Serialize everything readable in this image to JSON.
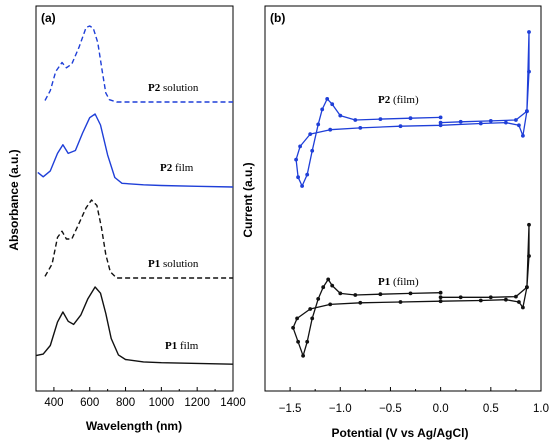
{
  "chart_data": [
    {
      "panel_label": "(a)",
      "type": "line",
      "xlabel": "Wavelength (nm)",
      "ylabel": "Absorbance (a.u.)",
      "xlim": [
        300,
        1400
      ],
      "xticks": [
        400,
        600,
        800,
        1000,
        1200,
        1400
      ],
      "y_ticks_shown": false,
      "series": [
        {
          "name": "P2 solution",
          "color": "#1f3fd8",
          "dash": true,
          "offset": 3,
          "points": [
            [
              350,
              0.02
            ],
            [
              380,
              0.15
            ],
            [
              410,
              0.4
            ],
            [
              445,
              0.52
            ],
            [
              470,
              0.45
            ],
            [
              500,
              0.5
            ],
            [
              540,
              0.72
            ],
            [
              580,
              0.98
            ],
            [
              600,
              1.0
            ],
            [
              620,
              0.97
            ],
            [
              645,
              0.78
            ],
            [
              670,
              0.4
            ],
            [
              690,
              0.12
            ],
            [
              710,
              0.03
            ],
            [
              750,
              0.0
            ],
            [
              800,
              0.0
            ],
            [
              1000,
              0.0
            ],
            [
              1200,
              0.0
            ],
            [
              1400,
              0.0
            ]
          ]
        },
        {
          "name": "P2 film",
          "color": "#1f3fd8",
          "dash": false,
          "offset": 2,
          "points": [
            [
              310,
              0.2
            ],
            [
              340,
              0.14
            ],
            [
              380,
              0.22
            ],
            [
              420,
              0.46
            ],
            [
              450,
              0.58
            ],
            [
              480,
              0.46
            ],
            [
              520,
              0.5
            ],
            [
              560,
              0.74
            ],
            [
              600,
              0.95
            ],
            [
              630,
              1.0
            ],
            [
              660,
              0.85
            ],
            [
              700,
              0.44
            ],
            [
              740,
              0.13
            ],
            [
              780,
              0.05
            ],
            [
              900,
              0.03
            ],
            [
              1000,
              0.02
            ],
            [
              1200,
              0.01
            ],
            [
              1400,
              0.0
            ]
          ]
        },
        {
          "name": "P1 solution",
          "color": "#111111",
          "dash": true,
          "offset": 1,
          "points": [
            [
              350,
              0.02
            ],
            [
              390,
              0.18
            ],
            [
              420,
              0.52
            ],
            [
              445,
              0.6
            ],
            [
              470,
              0.5
            ],
            [
              500,
              0.5
            ],
            [
              540,
              0.7
            ],
            [
              580,
              0.9
            ],
            [
              610,
              1.0
            ],
            [
              640,
              0.93
            ],
            [
              665,
              0.65
            ],
            [
              690,
              0.3
            ],
            [
              715,
              0.08
            ],
            [
              750,
              0.0
            ],
            [
              800,
              0.0
            ],
            [
              1000,
              0.0
            ],
            [
              1200,
              0.0
            ],
            [
              1400,
              0.0
            ]
          ]
        },
        {
          "name": "P1 film",
          "color": "#111111",
          "dash": false,
          "offset": 0,
          "points": [
            [
              300,
              0.12
            ],
            [
              340,
              0.14
            ],
            [
              380,
              0.25
            ],
            [
              420,
              0.55
            ],
            [
              450,
              0.68
            ],
            [
              480,
              0.56
            ],
            [
              510,
              0.52
            ],
            [
              550,
              0.64
            ],
            [
              590,
              0.85
            ],
            [
              630,
              1.0
            ],
            [
              660,
              0.92
            ],
            [
              690,
              0.66
            ],
            [
              720,
              0.34
            ],
            [
              760,
              0.13
            ],
            [
              800,
              0.07
            ],
            [
              900,
              0.04
            ],
            [
              1000,
              0.03
            ],
            [
              1200,
              0.02
            ],
            [
              1400,
              0.01
            ]
          ]
        }
      ],
      "annotations": [
        {
          "bold": "P2",
          "text": " solution"
        },
        {
          "bold": "P2",
          "text": " film"
        },
        {
          "bold": "P1",
          "text": " solution"
        },
        {
          "bold": "P1",
          "text": " film"
        }
      ]
    },
    {
      "panel_label": "(b)",
      "type": "line",
      "xlabel": "Potential (V vs Ag/AgCl)",
      "ylabel": "Current (a.u.)",
      "xlim": [
        -1.75,
        1.0
      ],
      "xticks": [
        -1.5,
        -1.0,
        -0.5,
        0.0,
        0.5,
        1.0
      ],
      "xtick_labels": [
        "−1.5",
        "−1.0",
        "−0.5",
        "0.0",
        "0.5",
        "1.0"
      ],
      "y_ticks_shown": false,
      "series": [
        {
          "name": "P2 (film)",
          "color": "#1f3fd8",
          "markers": true,
          "offset": 1,
          "points": [
            [
              0.0,
              0.03
            ],
            [
              -0.3,
              0.02
            ],
            [
              -0.6,
              0.01
            ],
            [
              -0.85,
              0.0
            ],
            [
              -1.0,
              0.05
            ],
            [
              -1.08,
              0.18
            ],
            [
              -1.13,
              0.24
            ],
            [
              -1.18,
              0.12
            ],
            [
              -1.22,
              -0.05
            ],
            [
              -1.28,
              -0.35
            ],
            [
              -1.33,
              -0.62
            ],
            [
              -1.38,
              -0.75
            ],
            [
              -1.42,
              -0.65
            ],
            [
              -1.44,
              -0.45
            ],
            [
              -1.4,
              -0.3
            ],
            [
              -1.3,
              -0.16
            ],
            [
              -1.1,
              -0.11
            ],
            [
              -0.8,
              -0.09
            ],
            [
              -0.4,
              -0.07
            ],
            [
              0.0,
              -0.06
            ],
            [
              0.4,
              -0.04
            ],
            [
              0.65,
              -0.03
            ],
            [
              0.78,
              -0.06
            ],
            [
              0.82,
              -0.18
            ],
            [
              0.86,
              0.1
            ],
            [
              0.88,
              0.55
            ],
            [
              0.88,
              1.0
            ],
            [
              0.86,
              0.1
            ],
            [
              0.75,
              0.0
            ],
            [
              0.5,
              -0.01
            ],
            [
              0.2,
              -0.02
            ],
            [
              0.0,
              -0.03
            ]
          ]
        },
        {
          "name": "P1 (film)",
          "color": "#111111",
          "markers": true,
          "offset": 0,
          "points": [
            [
              0.0,
              0.03
            ],
            [
              -0.3,
              0.02
            ],
            [
              -0.6,
              0.01
            ],
            [
              -0.85,
              0.0
            ],
            [
              -1.0,
              0.02
            ],
            [
              -1.08,
              0.12
            ],
            [
              -1.12,
              0.2
            ],
            [
              -1.17,
              0.1
            ],
            [
              -1.22,
              -0.05
            ],
            [
              -1.28,
              -0.3
            ],
            [
              -1.33,
              -0.6
            ],
            [
              -1.37,
              -0.78
            ],
            [
              -1.42,
              -0.6
            ],
            [
              -1.47,
              -0.42
            ],
            [
              -1.43,
              -0.3
            ],
            [
              -1.3,
              -0.18
            ],
            [
              -1.1,
              -0.12
            ],
            [
              -0.8,
              -0.1
            ],
            [
              -0.4,
              -0.09
            ],
            [
              0.0,
              -0.08
            ],
            [
              0.4,
              -0.07
            ],
            [
              0.65,
              -0.06
            ],
            [
              0.78,
              -0.09
            ],
            [
              0.82,
              -0.16
            ],
            [
              0.86,
              0.1
            ],
            [
              0.88,
              0.5
            ],
            [
              0.88,
              0.9
            ],
            [
              0.86,
              0.1
            ],
            [
              0.75,
              -0.02
            ],
            [
              0.5,
              -0.03
            ],
            [
              0.2,
              -0.03
            ],
            [
              0.0,
              -0.03
            ]
          ]
        }
      ],
      "annotations": [
        {
          "bold": "P2",
          "text": " (film)"
        },
        {
          "bold": "P1",
          "text": " (film)"
        }
      ]
    }
  ]
}
